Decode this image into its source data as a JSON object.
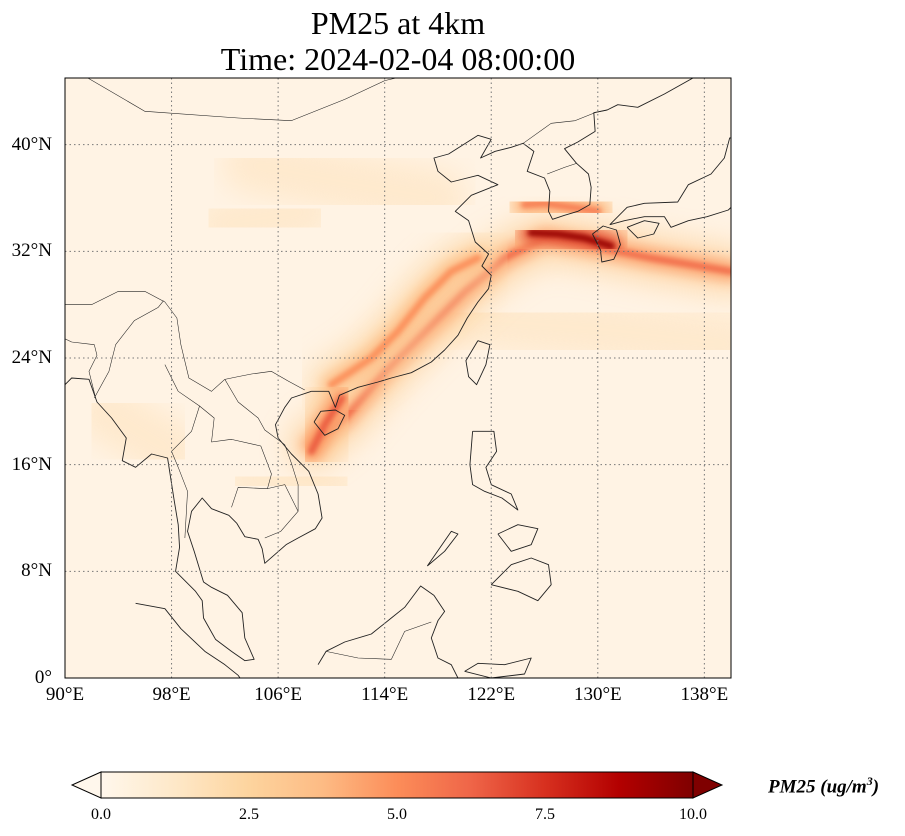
{
  "title": {
    "line1": "PM25 at 4km",
    "line2": "Time: 2024-02-04 08:00:00"
  },
  "map": {
    "lon_range": [
      90,
      140
    ],
    "lat_range": [
      0,
      45
    ],
    "lat_ticks": [
      {
        "value": 0,
        "label": "0°"
      },
      {
        "value": 8,
        "label": "8°N"
      },
      {
        "value": 16,
        "label": "16°N"
      },
      {
        "value": 24,
        "label": "24°N"
      },
      {
        "value": 32,
        "label": "32°N"
      },
      {
        "value": 40,
        "label": "40°N"
      }
    ],
    "lon_ticks": [
      {
        "value": 90,
        "label": "90°E"
      },
      {
        "value": 98,
        "label": "98°E"
      },
      {
        "value": 106,
        "label": "106°E"
      },
      {
        "value": 114,
        "label": "114°E"
      },
      {
        "value": 122,
        "label": "122°E"
      },
      {
        "value": 130,
        "label": "130°E"
      },
      {
        "value": 138,
        "label": "138°E"
      }
    ],
    "gridlines": true,
    "background_color": "#fff5eb"
  },
  "colorbar": {
    "min": 0.0,
    "max": 10.0,
    "colormap": "OrRd",
    "colors": [
      "#fff7ec",
      "#fee8c8",
      "#fdd49e",
      "#fdbb84",
      "#fc8d59",
      "#ef6548",
      "#d7301f",
      "#b30000",
      "#7f0000"
    ],
    "ticks": [
      {
        "value": 0.0,
        "label": "0.0"
      },
      {
        "value": 2.5,
        "label": "2.5"
      },
      {
        "value": 5.0,
        "label": "5.0"
      },
      {
        "value": 7.5,
        "label": "7.5"
      },
      {
        "value": 10.0,
        "label": "10.0"
      }
    ],
    "label_main": "PM25 (ug/m",
    "label_sup": "3",
    "label_end": ")",
    "extend": "both"
  },
  "plumes": [
    {
      "name": "east-china-band",
      "path": [
        [
          108.5,
          17.5
        ],
        [
          111,
          19.5
        ],
        [
          114,
          23
        ],
        [
          117,
          26
        ],
        [
          120,
          29
        ],
        [
          123,
          31.5
        ],
        [
          126,
          33
        ],
        [
          130,
          32.3
        ],
        [
          134,
          31.5
        ],
        [
          140,
          30.5
        ]
      ],
      "level": 6.0
    },
    {
      "name": "inland-band",
      "path": [
        [
          110,
          22
        ],
        [
          113,
          24
        ],
        [
          115,
          26
        ],
        [
          117,
          28.5
        ],
        [
          119,
          30.5
        ],
        [
          121,
          31.5
        ]
      ],
      "level": 5.0
    },
    {
      "name": "korea-japan-core",
      "path": [
        [
          125,
          33.4
        ],
        [
          127,
          33.3
        ],
        [
          129,
          33.0
        ],
        [
          131,
          32.4
        ]
      ],
      "level": 9.5
    },
    {
      "name": "korea-south",
      "path": [
        [
          124.5,
          35.5
        ],
        [
          126,
          35.6
        ],
        [
          128,
          35.3
        ],
        [
          130,
          35.0
        ]
      ],
      "level": 5.5
    },
    {
      "name": "gulf-tonkin",
      "path": [
        [
          108.5,
          17.0
        ],
        [
          109.5,
          19.0
        ],
        [
          110.8,
          21.0
        ]
      ],
      "level": 6.5
    },
    {
      "name": "myanmar-north",
      "path": [
        [
          94,
          27
        ],
        [
          97,
          27
        ]
      ],
      "level": 3.0
    }
  ]
}
